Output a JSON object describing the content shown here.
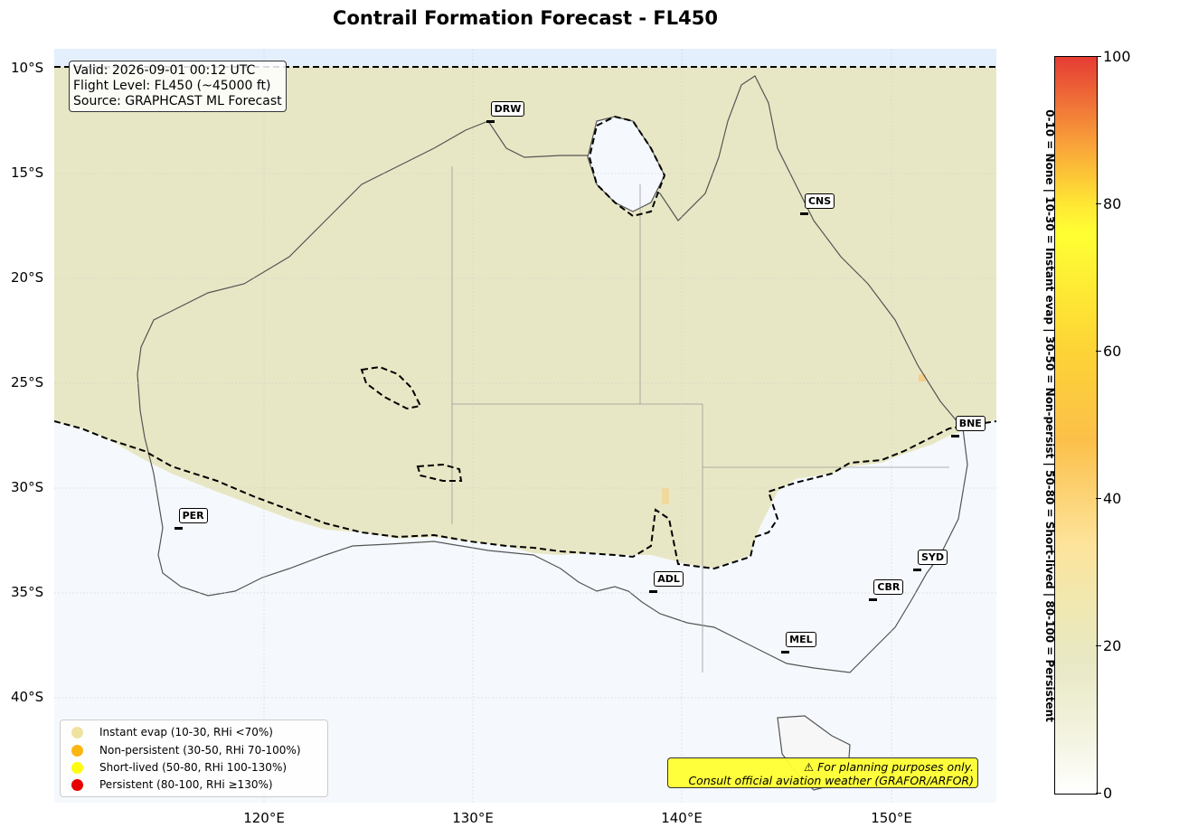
{
  "title": "Contrail Formation Forecast - FL450",
  "info": {
    "valid": "Valid: 2026-09-01 00:12 UTC",
    "flight_level": "Flight Level: FL450 (~45000 ft)",
    "source": "Source: GRAPHCAST ML Forecast"
  },
  "lat_labels": [
    "10°S",
    "15°S",
    "20°S",
    "25°S",
    "30°S",
    "35°S",
    "40°S"
  ],
  "lon_labels": [
    "120°E",
    "130°E",
    "140°E",
    "150°E"
  ],
  "cities": [
    {
      "code": "DRW",
      "lon": 130.8,
      "lat": -12.5
    },
    {
      "code": "CNS",
      "lon": 145.8,
      "lat": -16.9
    },
    {
      "code": "BNE",
      "lon": 153.0,
      "lat": -27.5
    },
    {
      "code": "PER",
      "lon": 115.9,
      "lat": -31.9
    },
    {
      "code": "ADL",
      "lon": 138.6,
      "lat": -34.9
    },
    {
      "code": "SYD",
      "lon": 151.2,
      "lat": -33.9
    },
    {
      "code": "CBR",
      "lon": 149.1,
      "lat": -35.3
    },
    {
      "code": "MEL",
      "lon": 144.9,
      "lat": -37.8
    }
  ],
  "legend": [
    {
      "label": "Instant evap (10-30, RHi <70%)",
      "color": "#f0e2a0"
    },
    {
      "label": "Non-persistent (30-50, RHi 70-100%)",
      "color": "#fbb614"
    },
    {
      "label": "Short-lived (50-80, RHi 100-130%)",
      "color": "#fcfc12"
    },
    {
      "label": "Persistent (80-100, RHi ≥130%)",
      "color": "#e60000"
    }
  ],
  "disclaimer": {
    "line1": "⚠ For planning purposes only.",
    "line2": "Consult official aviation weather (GRAFOR/ARFOR)"
  },
  "colorbar": {
    "ticks": [
      "0",
      "20",
      "40",
      "60",
      "80",
      "100"
    ],
    "description": "0-10 = None  |  10-30 = Instant evap  |  30-50 = Non-persist  |  50-80 = Short-lived  |  80-100 = Persistent"
  }
}
